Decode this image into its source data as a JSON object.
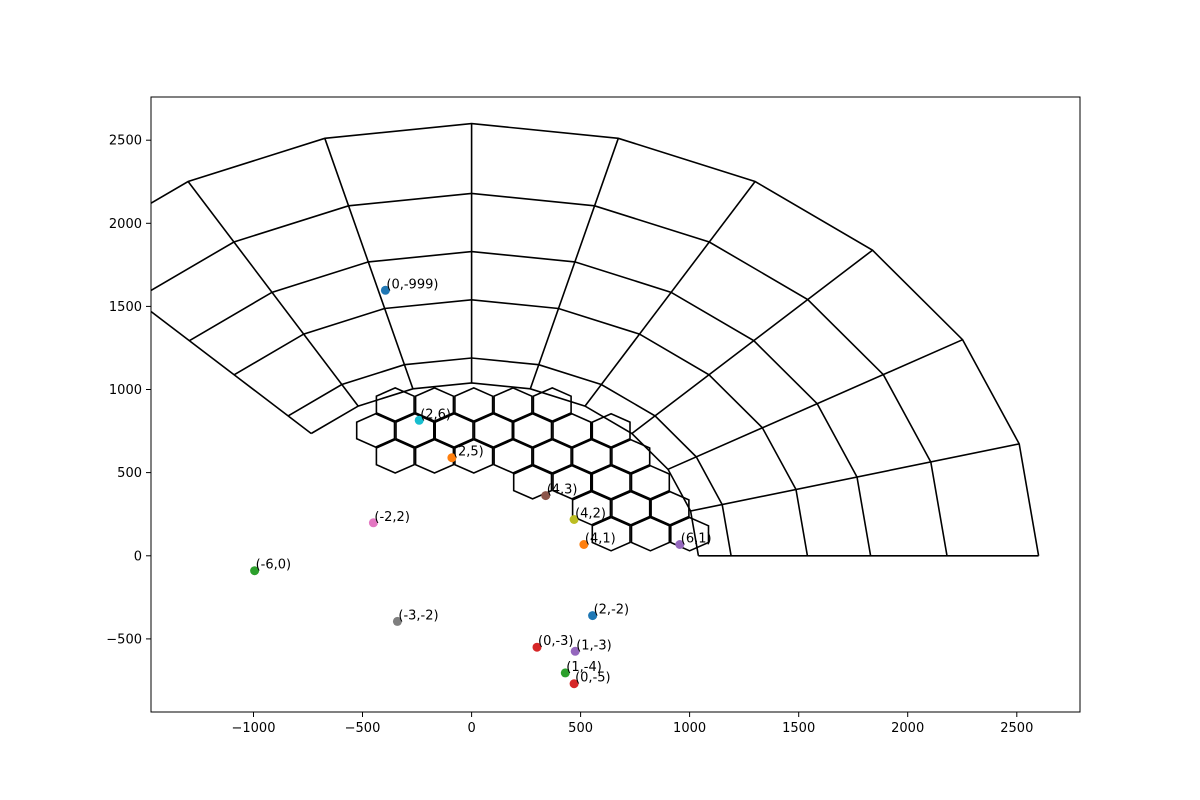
{
  "chart_data": {
    "type": "scatter",
    "title": "",
    "xlabel": "",
    "ylabel": "",
    "xlim": [
      -1470,
      2790
    ],
    "ylim": [
      -940,
      2760
    ],
    "grid": false,
    "x_ticks": [
      -1000,
      -500,
      0,
      500,
      1000,
      1500,
      2000,
      2500
    ],
    "x_tick_labels": [
      "−1000",
      "−500",
      "0",
      "500",
      "1000",
      "1500",
      "2000",
      "2500"
    ],
    "y_ticks": [
      -500,
      0,
      500,
      1000,
      1500,
      2000,
      2500
    ],
    "y_tick_labels": [
      "−500",
      "0",
      "500",
      "1000",
      "1500",
      "2000",
      "2500"
    ],
    "points": [
      {
        "label": "(0,-999)",
        "x": -395,
        "y": 1597,
        "color": "#1f77b4"
      },
      {
        "label": "(2,6)",
        "x": -240,
        "y": 815,
        "color": "#17becf"
      },
      {
        "label": "(2,5)",
        "x": -90,
        "y": 590,
        "color": "#ff7f0e"
      },
      {
        "label": "(4,3)",
        "x": 340,
        "y": 362,
        "color": "#8c564b"
      },
      {
        "label": "(4,2)",
        "x": 470,
        "y": 218,
        "color": "#bcbd22"
      },
      {
        "label": "(4,1)",
        "x": 515,
        "y": 68,
        "color": "#ff7f0e"
      },
      {
        "label": "(6,1)",
        "x": 955,
        "y": 68,
        "color": "#9467bd"
      },
      {
        "label": "(-2,2)",
        "x": -450,
        "y": 198,
        "color": "#e377c2"
      },
      {
        "label": "(-6,0)",
        "x": -995,
        "y": -90,
        "color": "#2ca02c"
      },
      {
        "label": "(-3,-2)",
        "x": -340,
        "y": -395,
        "color": "#7f7f7f"
      },
      {
        "label": "(2,-2)",
        "x": 555,
        "y": -360,
        "color": "#1f77b4"
      },
      {
        "label": "(0,-3)",
        "x": 300,
        "y": -550,
        "color": "#d62728"
      },
      {
        "label": "(1,-3)",
        "x": 475,
        "y": -575,
        "color": "#9467bd"
      },
      {
        "label": "(1,-4)",
        "x": 430,
        "y": -705,
        "color": "#2ca02c"
      },
      {
        "label": "(0,-5)",
        "x": 470,
        "y": -770,
        "color": "#d62728"
      }
    ],
    "polar_mesh": {
      "radii": [
        1040,
        1190,
        1540,
        1830,
        2180,
        2600
      ],
      "angles_deg": [
        0,
        15,
        30,
        45,
        60,
        75,
        90,
        105,
        120,
        135
      ]
    },
    "hex_mesh": {
      "hex_radius": 100,
      "centers": [
        [
          -350,
          910
        ],
        [
          -170,
          910
        ],
        [
          10,
          910
        ],
        [
          190,
          910
        ],
        [
          370,
          910
        ],
        [
          -440,
          754
        ],
        [
          -260,
          754
        ],
        [
          -80,
          754
        ],
        [
          100,
          754
        ],
        [
          280,
          754
        ],
        [
          460,
          754
        ],
        [
          640,
          754
        ],
        [
          -350,
          598
        ],
        [
          -170,
          598
        ],
        [
          10,
          598
        ],
        [
          190,
          598
        ],
        [
          370,
          598
        ],
        [
          550,
          598
        ],
        [
          730,
          598
        ],
        [
          280,
          442
        ],
        [
          460,
          442
        ],
        [
          640,
          442
        ],
        [
          820,
          442
        ],
        [
          550,
          286
        ],
        [
          730,
          286
        ],
        [
          910,
          286
        ],
        [
          640,
          130
        ],
        [
          820,
          130
        ],
        [
          1000,
          130
        ]
      ]
    }
  }
}
